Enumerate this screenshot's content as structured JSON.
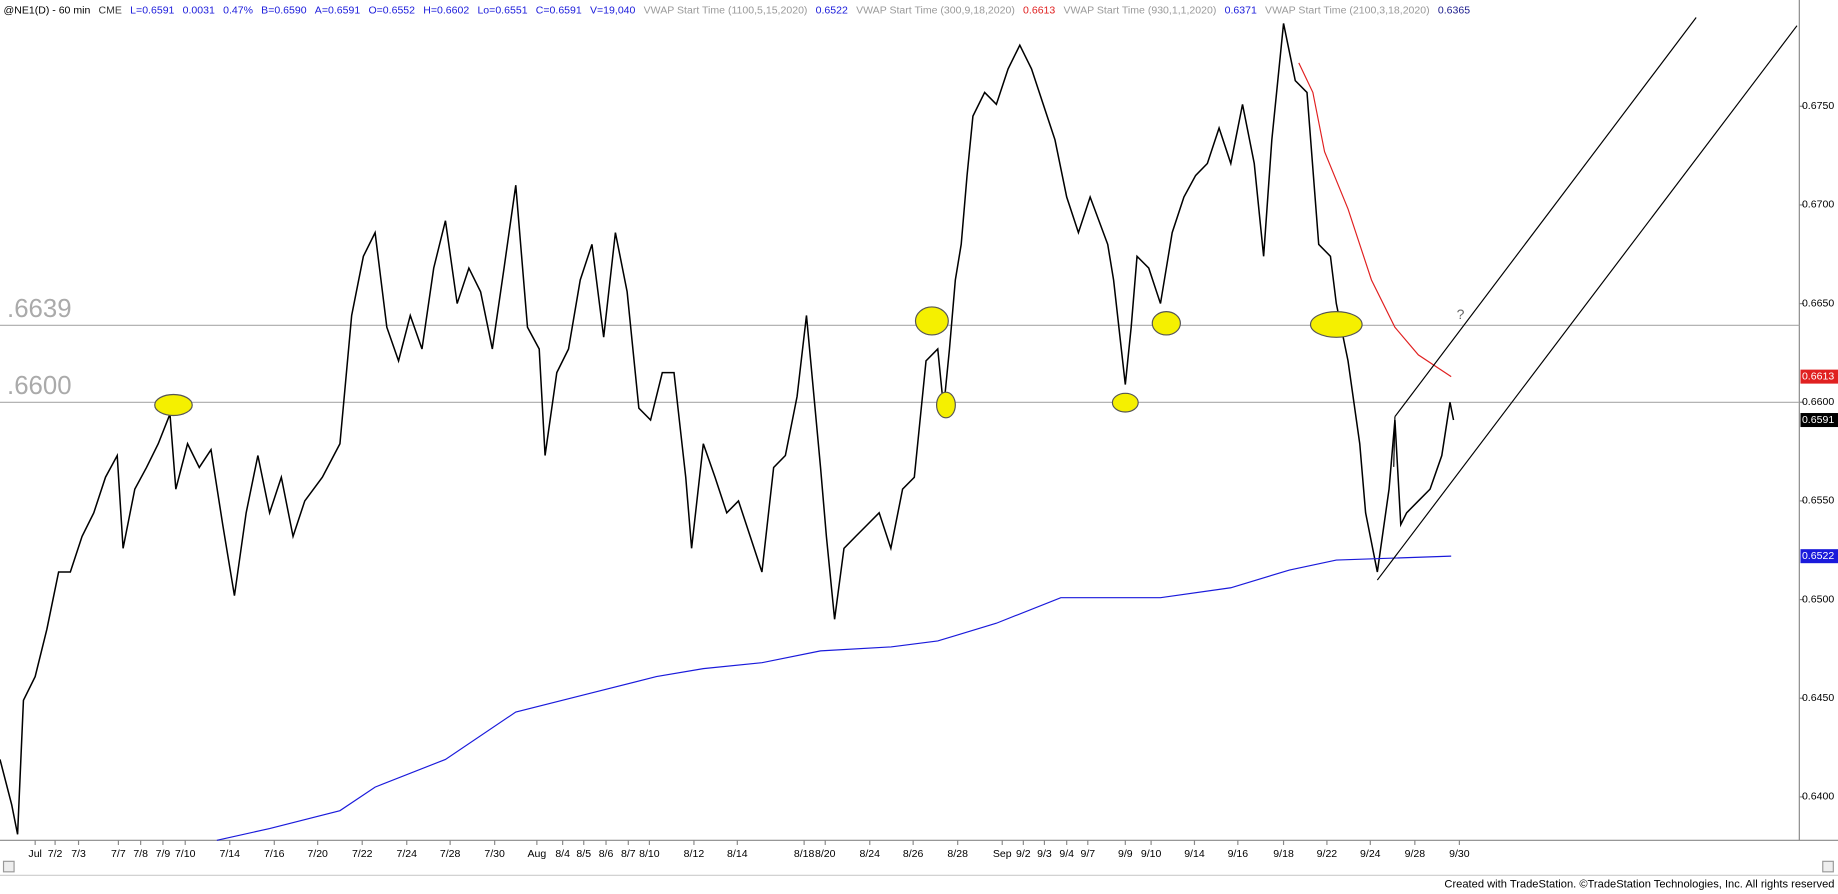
{
  "chart_data": {
    "type": "line",
    "header": [
      {
        "text": "@NE1(D) - 60 min",
        "color": "#000000"
      },
      {
        "text": "CME",
        "color": "#333333"
      },
      {
        "text": "L=0.6591",
        "color": "#1a1adb"
      },
      {
        "text": "0.0031",
        "color": "#1a1adb"
      },
      {
        "text": "0.47%",
        "color": "#1a1adb"
      },
      {
        "text": "B=0.6590",
        "color": "#1a1adb"
      },
      {
        "text": "A=0.6591",
        "color": "#1a1adb"
      },
      {
        "text": "O=0.6552",
        "color": "#1a1adb"
      },
      {
        "text": "H=0.6602",
        "color": "#1a1adb"
      },
      {
        "text": "Lo=0.6551",
        "color": "#1a1adb"
      },
      {
        "text": "C=0.6591",
        "color": "#1a1adb"
      },
      {
        "text": "V=19,040",
        "color": "#1a1adb"
      },
      {
        "text": "VWAP Start Time (1100,5,15,2020)",
        "color": "#999999"
      },
      {
        "text": "0.6522",
        "color": "#1a1adb"
      },
      {
        "text": "VWAP Start Time (300,9,18,2020)",
        "color": "#999999"
      },
      {
        "text": "0.6613",
        "color": "#e02020"
      },
      {
        "text": "VWAP Start Time (930,1,1,2020)",
        "color": "#999999"
      },
      {
        "text": "0.6371",
        "color": "#1a1adb"
      },
      {
        "text": "VWAP Start Time (2100,3,18,2020)",
        "color": "#999999"
      },
      {
        "text": "0.6365",
        "color": "#1a1a8b"
      }
    ],
    "footer": "Created with TradeStation. ©TradeStation Technologies, Inc. All rights reserved",
    "annotation": "?",
    "xlim": [
      0,
      1535
    ],
    "ylim": [
      0.6378,
      0.6795
    ],
    "yticks": [
      {
        "value": 0.64,
        "label": "0.6400"
      },
      {
        "value": 0.645,
        "label": "0.6450"
      },
      {
        "value": 0.65,
        "label": "0.6500"
      },
      {
        "value": 0.655,
        "label": "0.6550"
      },
      {
        "value": 0.66,
        "label": "0.6600"
      },
      {
        "value": 0.665,
        "label": "0.6650"
      },
      {
        "value": 0.67,
        "label": "0.6700"
      },
      {
        "value": 0.675,
        "label": "0.6750"
      }
    ],
    "xticks": [
      {
        "value": 30,
        "label": "Jul"
      },
      {
        "value": 47,
        "label": "7/2"
      },
      {
        "value": 67,
        "label": "7/3"
      },
      {
        "value": 101,
        "label": "7/7"
      },
      {
        "value": 120,
        "label": "7/8"
      },
      {
        "value": 139,
        "label": "7/9"
      },
      {
        "value": 158,
        "label": "7/10"
      },
      {
        "value": 196,
        "label": "7/14"
      },
      {
        "value": 234,
        "label": "7/16"
      },
      {
        "value": 271,
        "label": "7/20"
      },
      {
        "value": 309,
        "label": "7/22"
      },
      {
        "value": 347,
        "label": "7/24"
      },
      {
        "value": 384,
        "label": "7/28"
      },
      {
        "value": 422,
        "label": "7/30"
      },
      {
        "value": 458,
        "label": "Aug"
      },
      {
        "value": 480,
        "label": "8/4"
      },
      {
        "value": 498,
        "label": "8/5"
      },
      {
        "value": 517,
        "label": "8/6"
      },
      {
        "value": 536,
        "label": "8/7"
      },
      {
        "value": 554,
        "label": "8/10"
      },
      {
        "value": 592,
        "label": "8/12"
      },
      {
        "value": 629,
        "label": "8/14"
      },
      {
        "value": 686,
        "label": "8/18"
      },
      {
        "value": 704,
        "label": "8/20"
      },
      {
        "value": 742,
        "label": "8/24"
      },
      {
        "value": 779,
        "label": "8/26"
      },
      {
        "value": 817,
        "label": "8/28"
      },
      {
        "value": 855,
        "label": "Sep"
      },
      {
        "value": 873,
        "label": "9/2"
      },
      {
        "value": 891,
        "label": "9/3"
      },
      {
        "value": 910,
        "label": "9/4"
      },
      {
        "value": 928,
        "label": "9/7"
      },
      {
        "value": 960,
        "label": "9/9"
      },
      {
        "value": 982,
        "label": "9/10"
      },
      {
        "value": 1019,
        "label": "9/14"
      },
      {
        "value": 1056,
        "label": "9/16"
      },
      {
        "value": 1095,
        "label": "9/18"
      },
      {
        "value": 1132,
        "label": "9/22"
      },
      {
        "value": 1169,
        "label": "9/24"
      },
      {
        "value": 1207,
        "label": "9/28"
      },
      {
        "value": 1245,
        "label": "9/30"
      }
    ],
    "reference_lines": [
      {
        "value": 0.6639,
        "label": ".6639",
        "color": "#aaaaaa"
      },
      {
        "value": 0.66,
        "label": ".6600",
        "color": "#aaaaaa"
      }
    ],
    "last_values": [
      {
        "value": 0.6613,
        "label": "0.6613",
        "color": "#e02020"
      },
      {
        "value": 0.6591,
        "label": "0.6591",
        "color": "#000000"
      },
      {
        "value": 0.6522,
        "label": "0.6522",
        "color": "#1a1adb"
      }
    ],
    "series": [
      {
        "name": "@NE1(D)",
        "color": "#000000",
        "x": [
          0,
          10,
          15,
          20,
          30,
          40,
          50,
          60,
          70,
          80,
          90,
          100,
          105,
          115,
          125,
          135,
          145,
          150,
          160,
          170,
          180,
          190,
          200,
          210,
          220,
          230,
          240,
          250,
          260,
          275,
          290,
          300,
          310,
          320,
          330,
          340,
          350,
          360,
          370,
          380,
          390,
          400,
          410,
          420,
          430,
          440,
          450,
          460,
          465,
          475,
          485,
          495,
          505,
          515,
          525,
          535,
          545,
          555,
          565,
          575,
          585,
          590,
          600,
          610,
          620,
          630,
          640,
          650,
          660,
          670,
          680,
          688,
          700,
          705,
          712,
          720,
          730,
          740,
          750,
          760,
          770,
          780,
          790,
          800,
          805,
          810,
          815,
          820,
          825,
          830,
          840,
          850,
          860,
          870,
          880,
          890,
          900,
          910,
          920,
          930,
          945,
          950,
          960,
          965,
          970,
          980,
          990,
          1000,
          1010,
          1020,
          1030,
          1040,
          1050,
          1060,
          1070,
          1078,
          1085,
          1095,
          1105,
          1115,
          1125,
          1135,
          1140,
          1150,
          1160,
          1165,
          1175,
          1185,
          1190,
          1195,
          1200,
          1210,
          1220,
          1230,
          1237,
          1240
        ],
        "values": [
          0.6419,
          0.6396,
          0.6381,
          0.6449,
          0.6461,
          0.6485,
          0.6514,
          0.6514,
          0.6532,
          0.6544,
          0.6562,
          0.6573,
          0.6526,
          0.6556,
          0.6567,
          0.6579,
          0.6594,
          0.6556,
          0.6579,
          0.6567,
          0.6576,
          0.6538,
          0.6502,
          0.6544,
          0.6573,
          0.6544,
          0.6562,
          0.6532,
          0.655,
          0.6562,
          0.6579,
          0.6644,
          0.6674,
          0.6686,
          0.6638,
          0.6621,
          0.6644,
          0.6627,
          0.6668,
          0.6692,
          0.665,
          0.6668,
          0.6656,
          0.6627,
          0.6668,
          0.671,
          0.6638,
          0.6627,
          0.6573,
          0.6615,
          0.6627,
          0.6662,
          0.668,
          0.6633,
          0.6686,
          0.6656,
          0.6597,
          0.6591,
          0.6615,
          0.6615,
          0.6562,
          0.6526,
          0.6579,
          0.6562,
          0.6544,
          0.655,
          0.6532,
          0.6514,
          0.6567,
          0.6573,
          0.6603,
          0.6644,
          0.6567,
          0.6532,
          0.649,
          0.6526,
          0.6532,
          0.6538,
          0.6544,
          0.6526,
          0.6556,
          0.6562,
          0.6621,
          0.6627,
          0.6597,
          0.6627,
          0.6662,
          0.668,
          0.6715,
          0.6745,
          0.6757,
          0.6751,
          0.6769,
          0.6781,
          0.6769,
          0.6751,
          0.6733,
          0.6704,
          0.6686,
          0.6704,
          0.668,
          0.6662,
          0.6609,
          0.6638,
          0.6674,
          0.6668,
          0.665,
          0.6686,
          0.6704,
          0.6715,
          0.6721,
          0.6739,
          0.6721,
          0.6751,
          0.6721,
          0.6674,
          0.6733,
          0.6792,
          0.6763,
          0.6757,
          0.668,
          0.6674,
          0.665,
          0.6621,
          0.6579,
          0.6544,
          0.6514,
          0.6556,
          0.6591,
          0.6538,
          0.6544,
          0.655,
          0.6556,
          0.6573,
          0.66,
          0.6591
        ]
      },
      {
        "name": "VWAP Start Time (1100,5,15,2020)",
        "color": "#1a1adb",
        "x": [
          185,
          230,
          290,
          320,
          380,
          440,
          500,
          560,
          600,
          650,
          700,
          760,
          800,
          850,
          905,
          990,
          1050,
          1100,
          1140,
          1238
        ],
        "values": [
          0.6378,
          0.6384,
          0.6393,
          0.6405,
          0.6419,
          0.6443,
          0.6452,
          0.6461,
          0.6465,
          0.6468,
          0.6474,
          0.6476,
          0.6479,
          0.6488,
          0.6501,
          0.6501,
          0.6506,
          0.6515,
          0.652,
          0.6522
        ]
      },
      {
        "name": "VWAP Start Time (300,9,18,2020)",
        "color": "#e02020",
        "x": [
          1108,
          1120,
          1130,
          1150,
          1170,
          1190,
          1210,
          1238
        ],
        "values": [
          0.6772,
          0.6757,
          0.6727,
          0.6698,
          0.6662,
          0.6638,
          0.6624,
          0.6613
        ]
      }
    ]
  }
}
